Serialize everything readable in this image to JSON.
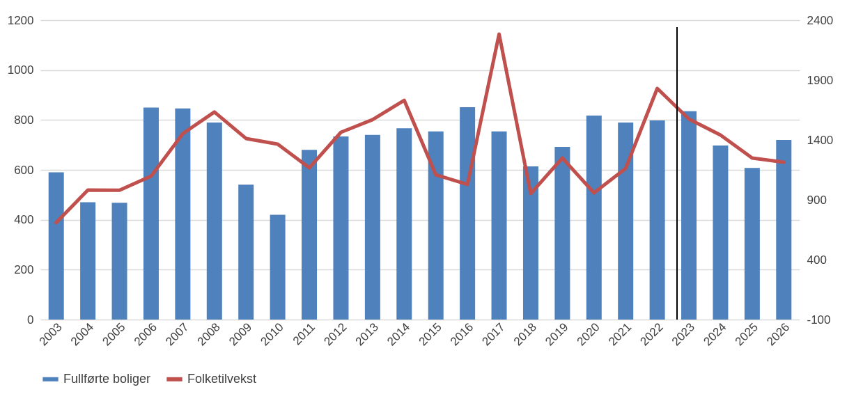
{
  "chart_data": {
    "type": "bar",
    "categories": [
      "2003",
      "2004",
      "2005",
      "2006",
      "2007",
      "2008",
      "2009",
      "2010",
      "2011",
      "2012",
      "2013",
      "2014",
      "2015",
      "2016",
      "2017",
      "2018",
      "2019",
      "2020",
      "2021",
      "2022",
      "2023",
      "2024",
      "2025",
      "2026"
    ],
    "series": [
      {
        "name": "Fullførte boliger",
        "color": "#4f81bd",
        "values": [
          590,
          470,
          468,
          850,
          846,
          790,
          541,
          420,
          680,
          734,
          740,
          767,
          754,
          851,
          754,
          614,
          692,
          818,
          790,
          798,
          835,
          698,
          608,
          720
        ]
      },
      {
        "name": "Folketilvekst",
        "type": "line",
        "axis": "y2",
        "color": "#c0504d",
        "values": [
          710,
          981,
          980,
          1098,
          1452,
          1633,
          1412,
          1365,
          1167,
          1464,
          1569,
          1731,
          1109,
          1028,
          2284,
          952,
          1249,
          958,
          1162,
          1830,
          1574,
          1441,
          1249,
          1214
        ]
      }
    ],
    "ylim": [
      0,
      1200
    ],
    "yticks": [
      0,
      200,
      400,
      600,
      800,
      1000,
      1200
    ],
    "y2lim": [
      -100,
      2400
    ],
    "y2ticks": [
      -100,
      400,
      900,
      1400,
      1900,
      2400
    ],
    "ref_lines": [
      {
        "axis": "x",
        "value": "2023",
        "color": "#000000"
      }
    ],
    "grid": "y",
    "legend": "bottom"
  }
}
